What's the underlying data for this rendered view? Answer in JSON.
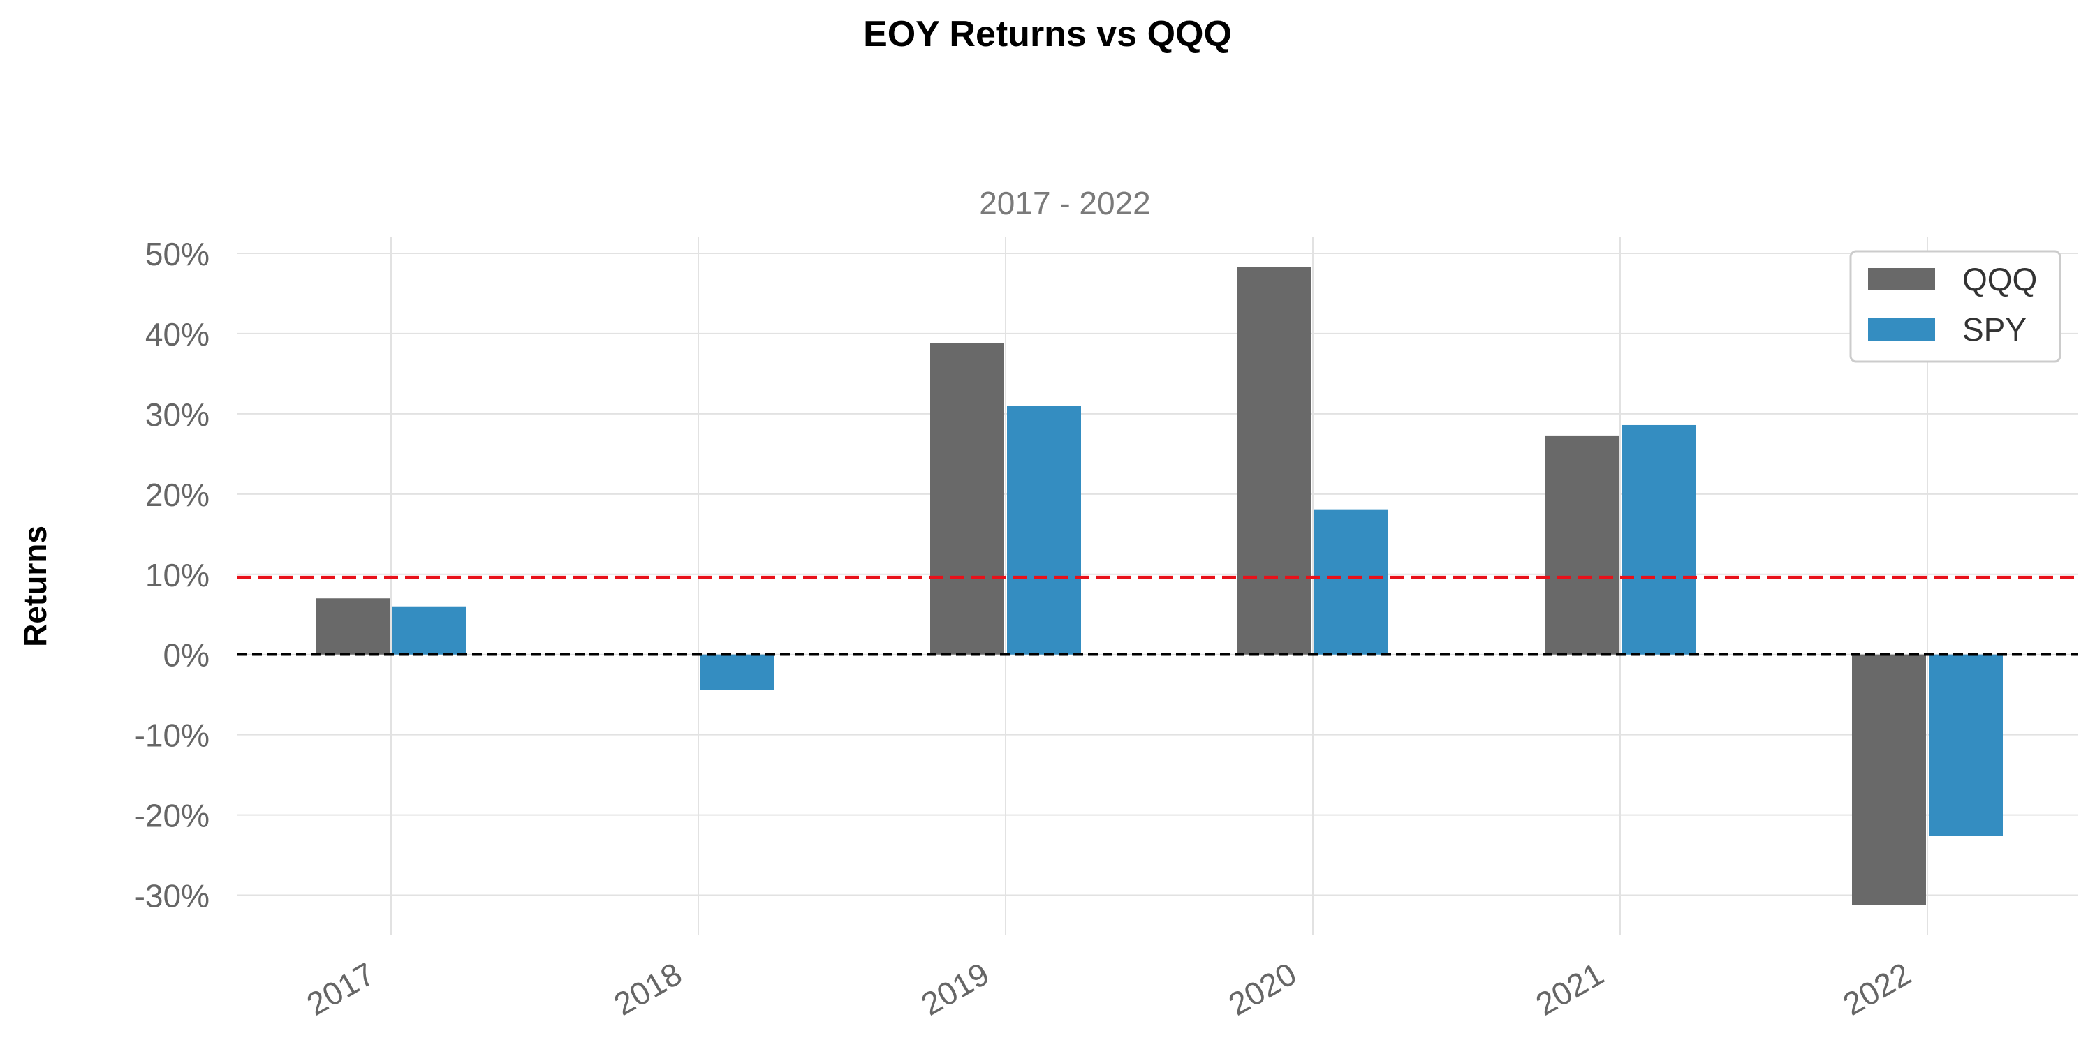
{
  "chart_data": {
    "type": "bar",
    "title": "EOY Returns vs QQQ",
    "subtitle": "2017 - 2022",
    "ylabel": "Returns",
    "xlabel": "",
    "categories": [
      "2017",
      "2018",
      "2019",
      "2020",
      "2021",
      "2022"
    ],
    "series": [
      {
        "name": "QQQ",
        "color": "#696969",
        "values": [
          7.0,
          0.0,
          38.8,
          48.3,
          27.3,
          -31.2
        ]
      },
      {
        "name": "SPY",
        "color": "#348dc1",
        "values": [
          6.0,
          -4.4,
          31.0,
          18.1,
          28.6,
          -22.6
        ]
      }
    ],
    "ylim": [
      -35,
      52
    ],
    "yticks": [
      50,
      40,
      30,
      20,
      10,
      0,
      -10,
      -20,
      -30
    ],
    "ytick_labels": [
      "50%",
      "40%",
      "30%",
      "20%",
      "10%",
      "0%",
      "-10%",
      "-20%",
      "-30%"
    ],
    "reference_lines": [
      {
        "name": "mean",
        "value": 9.6,
        "color": "#e8111a",
        "style": "dashed"
      },
      {
        "name": "zero",
        "value": 0,
        "color": "#000000",
        "style": "dashed"
      }
    ],
    "grid": true,
    "legend_position": "top-right"
  }
}
